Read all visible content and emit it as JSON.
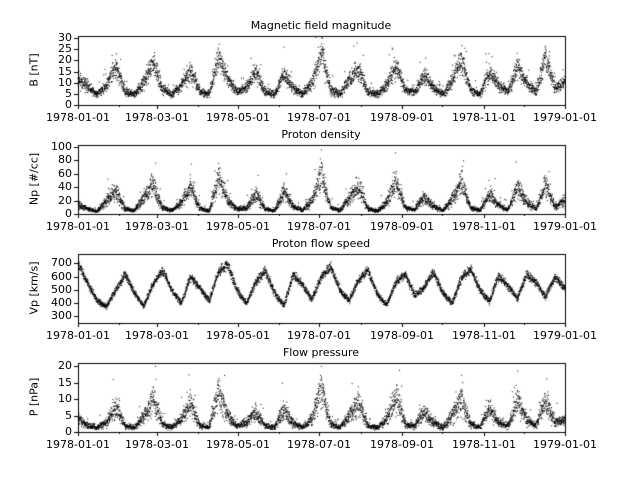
{
  "figure": {
    "background": "#ffffff",
    "point_color": "#000000",
    "axis_color": "#000000"
  },
  "x_axis": {
    "tick_labels": [
      "1978-01-01",
      "1978-03-01",
      "1978-05-01",
      "1978-07-01",
      "1978-09-01",
      "1978-11-01",
      "1979-01-01"
    ],
    "tick_days": [
      0,
      59,
      120,
      181,
      243,
      304,
      365
    ],
    "month_tick_days": [
      0,
      31,
      59,
      90,
      120,
      151,
      181,
      212,
      243,
      273,
      304,
      334,
      365
    ],
    "xlim_days": [
      0,
      365
    ],
    "x_unit": "date (year 1978)"
  },
  "chart_data": [
    {
      "type": "scatter",
      "title": "Magnetic field magnitude",
      "ylabel": "B [nT]",
      "yticks": [
        "0",
        "5",
        "10",
        "15",
        "20",
        "25",
        "30"
      ],
      "ytick_values": [
        0,
        5,
        10,
        15,
        20,
        25,
        30
      ],
      "ylim": [
        0,
        31
      ],
      "x_start_day": 0,
      "x_step_days": 7,
      "weekly_values": [
        12,
        8,
        5,
        9,
        18,
        6,
        5,
        10,
        20,
        7,
        5,
        9,
        16,
        6,
        5,
        22,
        12,
        6,
        8,
        15,
        6,
        5,
        14,
        8,
        5,
        10,
        24,
        7,
        5,
        12,
        16,
        6,
        5,
        9,
        18,
        7,
        6,
        13,
        8,
        5,
        11,
        21,
        7,
        5,
        15,
        9,
        6,
        17,
        10,
        6,
        22,
        8,
        10
      ],
      "spread": 0.3,
      "outlier_prob": 0.02,
      "outlier_factor": 1.6,
      "seed": 11
    },
    {
      "type": "scatter",
      "title": "Proton density",
      "ylabel": "Np [#/cc]",
      "yticks": [
        "0",
        "20",
        "40",
        "60",
        "80",
        "100"
      ],
      "ytick_values": [
        0,
        20,
        40,
        60,
        80,
        100
      ],
      "ylim": [
        0,
        103
      ],
      "x_start_day": 0,
      "x_step_days": 7,
      "weekly_values": [
        15,
        8,
        5,
        20,
        35,
        8,
        6,
        25,
        45,
        10,
        6,
        18,
        40,
        9,
        5,
        55,
        20,
        8,
        10,
        30,
        8,
        5,
        35,
        12,
        6,
        20,
        60,
        10,
        6,
        25,
        42,
        8,
        5,
        18,
        50,
        10,
        7,
        28,
        12,
        6,
        22,
        48,
        10,
        6,
        30,
        14,
        7,
        40,
        18,
        8,
        45,
        12,
        20
      ],
      "spread": 0.4,
      "outlier_prob": 0.02,
      "outlier_factor": 1.8,
      "seed": 22
    },
    {
      "type": "scatter",
      "title": "Proton flow speed",
      "ylabel": "Vp [km/s]",
      "yticks": [
        "300",
        "400",
        "500",
        "600",
        "700"
      ],
      "ytick_values": [
        300,
        400,
        500,
        600,
        700
      ],
      "ylim": [
        250,
        770
      ],
      "x_start_day": 0,
      "x_step_days": 7,
      "weekly_values": [
        700,
        550,
        420,
        380,
        500,
        620,
        480,
        380,
        550,
        650,
        500,
        400,
        600,
        520,
        420,
        640,
        690,
        500,
        400,
        560,
        650,
        480,
        380,
        620,
        540,
        430,
        600,
        680,
        500,
        420,
        580,
        650,
        470,
        390,
        560,
        620,
        460,
        520,
        640,
        480,
        400,
        590,
        660,
        500,
        420,
        610,
        530,
        440,
        620,
        560,
        450,
        600,
        520
      ],
      "spread": 0.05,
      "outlier_prob": 0.004,
      "outlier_factor": 1.06,
      "seed": 33
    },
    {
      "type": "scatter",
      "title": "Flow pressure",
      "ylabel": "P [nPa]",
      "yticks": [
        "0",
        "5",
        "10",
        "15",
        "20"
      ],
      "ytick_values": [
        0,
        5,
        10,
        15,
        20
      ],
      "ylim": [
        0,
        21
      ],
      "x_start_day": 0,
      "x_step_days": 7,
      "weekly_values": [
        4,
        2,
        1.5,
        3,
        8,
        2,
        1.5,
        5,
        10,
        2.5,
        1.5,
        4,
        9,
        2,
        1.5,
        12,
        5,
        2,
        3,
        6,
        2,
        1.5,
        7,
        3,
        1.5,
        4,
        14,
        2.5,
        1.5,
        5,
        9,
        2,
        1.5,
        4,
        11,
        2.5,
        2,
        6,
        3,
        1.5,
        5,
        10,
        2.5,
        1.5,
        7,
        3,
        2,
        9,
        4,
        2,
        10,
        3,
        4
      ],
      "spread": 0.45,
      "outlier_prob": 0.02,
      "outlier_factor": 1.8,
      "seed": 44
    }
  ]
}
